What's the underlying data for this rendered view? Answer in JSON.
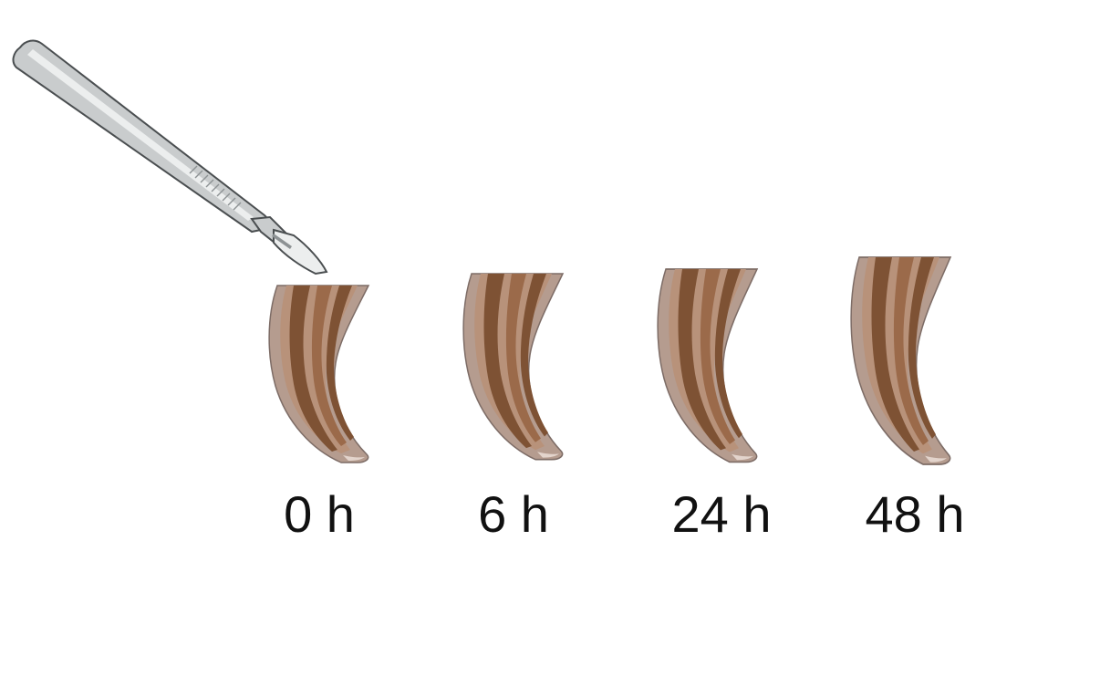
{
  "figure": {
    "tool_icon": "scalpel-icon",
    "specimen_icon": "tail-segment-icon",
    "colors": {
      "outer": "#b59c8f",
      "outer_stroke": "#7d6c66",
      "band_dark": "#7e5234",
      "band_mid": "#9b6a4a",
      "band_light": "#b8927a",
      "metal": "#c9cccd",
      "metal_dark": "#8d9294",
      "metal_light": "#eceeee"
    }
  },
  "stages": [
    {
      "label": "0 h"
    },
    {
      "label": "6 h"
    },
    {
      "label": "24 h"
    },
    {
      "label": "48 h"
    }
  ]
}
